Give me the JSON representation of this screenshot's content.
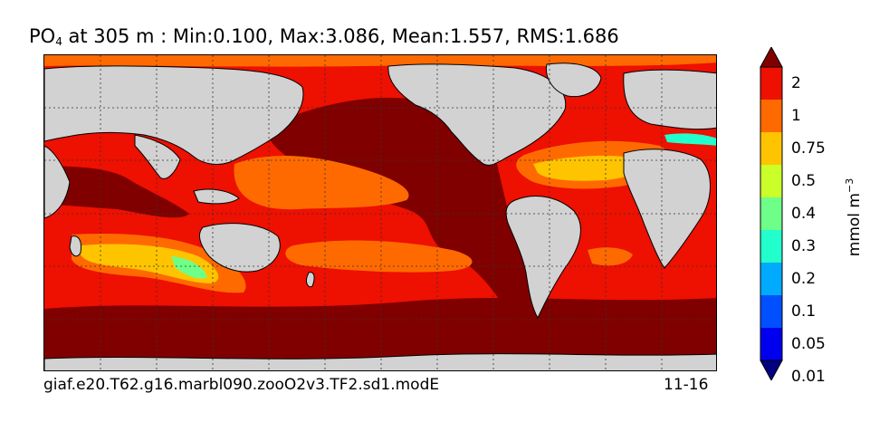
{
  "title": {
    "variable": "PO",
    "subscript": "4",
    "rest": " at 305 m : Min:0.100, Max:3.086, Mean:1.557, RMS:1.686"
  },
  "case_label": "giaf.e20.T62.g16.marbl090.zooO2v3.TF2.sd1.modE",
  "date_label": "11-16",
  "colorbar": {
    "units_text": "mmol m",
    "units_exponent": "−3",
    "levels": [
      "2",
      "1",
      "0.75",
      "0.5",
      "0.4",
      "0.3",
      "0.2",
      "0.1",
      "0.05",
      "0.01"
    ],
    "colors": [
      "#800000",
      "#ee1000",
      "#ff6a00",
      "#ffc400",
      "#cbff2a",
      "#6eff88",
      "#22ffcc",
      "#00aaff",
      "#0050ff",
      "#0000ee",
      "#000080"
    ]
  },
  "map": {
    "land_color": "#d2d2d2",
    "grid_style": "dotted"
  }
}
